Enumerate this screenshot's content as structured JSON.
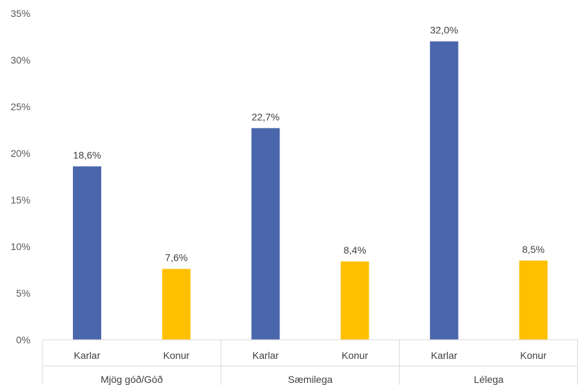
{
  "chart_data": {
    "type": "bar",
    "title": "",
    "xlabel": "",
    "ylabel": "",
    "ylim": [
      0,
      35
    ],
    "yticks": [
      "0%",
      "5%",
      "10%",
      "15%",
      "20%",
      "25%",
      "30%",
      "35%"
    ],
    "grid": false,
    "legend": "none",
    "groups": [
      {
        "label": "Mjög góð/Góð",
        "bars": [
          {
            "category": "Karlar",
            "value": 18.6,
            "value_label": "18,6%",
            "color": "#4A66AC"
          },
          {
            "category": "Konur",
            "value": 7.6,
            "value_label": "7,6%",
            "color": "#FFC000"
          }
        ]
      },
      {
        "label": "Sæmilega",
        "bars": [
          {
            "category": "Karlar",
            "value": 22.7,
            "value_label": "22,7%",
            "color": "#4A66AC"
          },
          {
            "category": "Konur",
            "value": 8.4,
            "value_label": "8,4%",
            "color": "#FFC000"
          }
        ]
      },
      {
        "label": "Lélega",
        "bars": [
          {
            "category": "Karlar",
            "value": 32.0,
            "value_label": "32,0%",
            "color": "#4A66AC"
          },
          {
            "category": "Konur",
            "value": 8.5,
            "value_label": "8,5%",
            "color": "#FFC000"
          }
        ]
      }
    ]
  }
}
